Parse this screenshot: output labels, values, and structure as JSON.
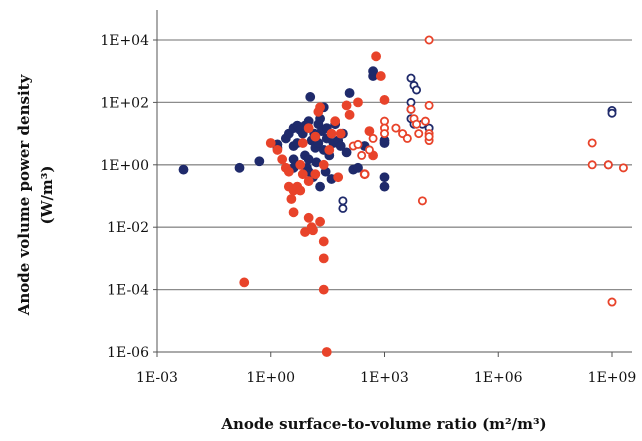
{
  "chart_data": {
    "type": "scatter",
    "title": "",
    "xlabel": "Anode surface-to-volume ratio (m²/m³)",
    "ylabel": "Anode volume power density (W/m³)",
    "x_scale": "log",
    "y_scale": "log",
    "xlim": [
      0.001,
      1000000000
    ],
    "ylim": [
      1e-06,
      10000
    ],
    "x_ticks": [
      0.001,
      1,
      1000,
      1000000,
      1000000000
    ],
    "x_tick_labels": [
      "1E-03",
      "1E+00",
      "1E+03",
      "1E+06",
      "1E+09"
    ],
    "y_ticks": [
      1e-06,
      0.0001,
      0.01,
      1,
      100,
      10000
    ],
    "y_tick_labels": [
      "1E-06",
      "1E-04",
      "1E-02",
      "1E+00",
      "1E+02",
      "1E+04"
    ],
    "grid": "horizontal",
    "colors": {
      "navy": "#1f2a6b",
      "red": "#e8432a"
    },
    "series": [
      {
        "color": "navy",
        "marker": "filled-circle",
        "points": [
          [
            0.005,
            0.7
          ],
          [
            0.15,
            0.8
          ],
          [
            0.5,
            1.3
          ],
          [
            1.5,
            3.5
          ],
          [
            1.5,
            4.5
          ],
          [
            2.5,
            7
          ],
          [
            3,
            10
          ],
          [
            4,
            15
          ],
          [
            4,
            1.5
          ],
          [
            4,
            0.8
          ],
          [
            4,
            4
          ],
          [
            5,
            18
          ],
          [
            5,
            5
          ],
          [
            6,
            13
          ],
          [
            7,
            10
          ],
          [
            8,
            18
          ],
          [
            8,
            2
          ],
          [
            9,
            0.8
          ],
          [
            10,
            25
          ],
          [
            10,
            1.5
          ],
          [
            10,
            0.6
          ],
          [
            11,
            150
          ],
          [
            12,
            6
          ],
          [
            13,
            0.4
          ],
          [
            14,
            10
          ],
          [
            15,
            7
          ],
          [
            15,
            3.5
          ],
          [
            16,
            1.2
          ],
          [
            18,
            20
          ],
          [
            18,
            5
          ],
          [
            20,
            30
          ],
          [
            20,
            0.2
          ],
          [
            22,
            12
          ],
          [
            25,
            70
          ],
          [
            25,
            3
          ],
          [
            28,
            0.6
          ],
          [
            30,
            15
          ],
          [
            30,
            7
          ],
          [
            35,
            2
          ],
          [
            40,
            0.35
          ],
          [
            45,
            5
          ],
          [
            50,
            20
          ],
          [
            60,
            6
          ],
          [
            70,
            4
          ],
          [
            80,
            10
          ],
          [
            100,
            2.5
          ],
          [
            120,
            200
          ],
          [
            150,
            0.7
          ],
          [
            200,
            0.8
          ],
          [
            300,
            4
          ],
          [
            500,
            700
          ],
          [
            500,
            1000
          ],
          [
            1000,
            0.4
          ],
          [
            1000,
            0.2
          ],
          [
            1000,
            5
          ],
          [
            1000,
            6
          ]
        ]
      },
      {
        "color": "red",
        "marker": "filled-circle",
        "points": [
          [
            0.2,
            0.00017
          ],
          [
            1,
            5
          ],
          [
            1.5,
            3
          ],
          [
            2,
            1.5
          ],
          [
            2.5,
            0.8
          ],
          [
            3,
            0.2
          ],
          [
            3,
            0.6
          ],
          [
            3.5,
            0.08
          ],
          [
            4,
            0.15
          ],
          [
            4,
            0.03
          ],
          [
            5,
            0.2
          ],
          [
            6,
            1
          ],
          [
            6,
            0.15
          ],
          [
            7,
            0.5
          ],
          [
            7,
            5
          ],
          [
            8,
            0.007
          ],
          [
            10,
            0.02
          ],
          [
            10,
            0.3
          ],
          [
            10,
            15
          ],
          [
            12,
            0.01
          ],
          [
            13,
            0.008
          ],
          [
            15,
            0.5
          ],
          [
            15,
            8
          ],
          [
            18,
            50
          ],
          [
            20,
            70
          ],
          [
            20,
            0.015
          ],
          [
            25,
            0.001
          ],
          [
            25,
            0.0035
          ],
          [
            25,
            0.0001
          ],
          [
            25,
            1
          ],
          [
            30,
            1e-06
          ],
          [
            35,
            3
          ],
          [
            40,
            10
          ],
          [
            50,
            25
          ],
          [
            60,
            0.4
          ],
          [
            70,
            10
          ],
          [
            100,
            80
          ],
          [
            120,
            40
          ],
          [
            200,
            100
          ],
          [
            300,
            0.5
          ],
          [
            400,
            12
          ],
          [
            500,
            2
          ],
          [
            600,
            3000
          ],
          [
            800,
            700
          ],
          [
            1000,
            120
          ]
        ]
      },
      {
        "color": "navy",
        "marker": "open-circle",
        "points": [
          [
            80,
            0.07
          ],
          [
            80,
            0.04
          ],
          [
            5000,
            600
          ],
          [
            6000,
            350
          ],
          [
            7000,
            250
          ],
          [
            5000,
            100
          ],
          [
            5000,
            60
          ],
          [
            5000,
            30
          ],
          [
            6000,
            20
          ],
          [
            10000,
            20
          ],
          [
            15000,
            15
          ],
          [
            800000000,
            1
          ],
          [
            1000000000,
            55
          ],
          [
            1000000000,
            45
          ]
        ]
      },
      {
        "color": "red",
        "marker": "open-circle",
        "points": [
          [
            150,
            4
          ],
          [
            200,
            4.5
          ],
          [
            250,
            2
          ],
          [
            300,
            0.5
          ],
          [
            400,
            3
          ],
          [
            500,
            7
          ],
          [
            1000,
            25
          ],
          [
            1000,
            15
          ],
          [
            1000,
            10
          ],
          [
            2000,
            15
          ],
          [
            3000,
            10
          ],
          [
            4000,
            7
          ],
          [
            5000,
            60
          ],
          [
            6000,
            30
          ],
          [
            7000,
            20
          ],
          [
            8000,
            10
          ],
          [
            10000,
            0.07
          ],
          [
            12000,
            25
          ],
          [
            15000,
            10
          ],
          [
            15000,
            6
          ],
          [
            15000,
            80
          ],
          [
            15000,
            8
          ],
          [
            15000,
            10000
          ],
          [
            300000000,
            5
          ],
          [
            300000000,
            1
          ],
          [
            1000000000,
            4e-05
          ],
          [
            2000000000,
            0.8
          ],
          [
            800000000,
            1
          ]
        ]
      }
    ]
  }
}
